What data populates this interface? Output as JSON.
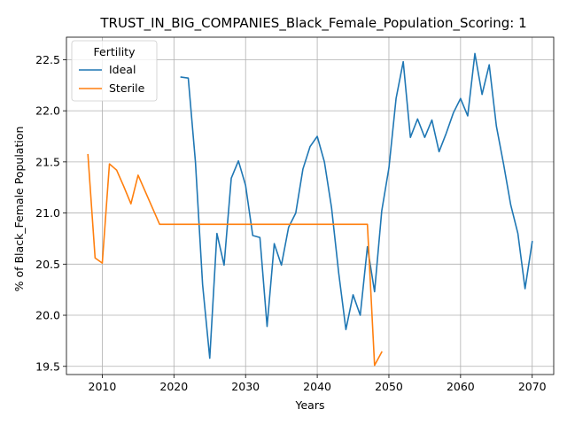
{
  "chart_data": {
    "type": "line",
    "title": "TRUST_IN_BIG_COMPANIES_Black_Female_Population_Scoring: 1",
    "xlabel": "Years",
    "ylabel": "% of Black_Female Population",
    "xlim": [
      2005,
      2073
    ],
    "ylim": [
      19.42,
      22.72
    ],
    "xticks": [
      2010,
      2020,
      2030,
      2040,
      2050,
      2060,
      2070
    ],
    "yticks": [
      19.5,
      20.0,
      20.5,
      21.0,
      21.5,
      22.0,
      22.5
    ],
    "xtick_labels": [
      "2010",
      "2020",
      "2030",
      "2040",
      "2050",
      "2060",
      "2070"
    ],
    "ytick_labels": [
      "19.5",
      "20.0",
      "20.5",
      "21.0",
      "21.5",
      "22.0",
      "22.5"
    ],
    "grid": true,
    "legend": {
      "title": "Fertility",
      "placement": "top-left"
    },
    "series": [
      {
        "name": "Ideal",
        "color": "#1f77b4",
        "x": [
          2021,
          2022,
          2023,
          2024,
          2025,
          2026,
          2027,
          2028,
          2029,
          2030,
          2031,
          2032,
          2033,
          2034,
          2035,
          2036,
          2037,
          2038,
          2039,
          2040,
          2041,
          2042,
          2043,
          2044,
          2045,
          2046,
          2047,
          2048,
          2049,
          2050,
          2051,
          2052,
          2053,
          2054,
          2055,
          2056,
          2057,
          2058,
          2059,
          2060,
          2061,
          2062,
          2063,
          2064,
          2065,
          2066,
          2067,
          2068,
          2069,
          2070
        ],
        "y": [
          22.33,
          22.32,
          21.5,
          20.3,
          19.58,
          20.8,
          20.49,
          21.34,
          21.51,
          21.27,
          20.78,
          20.76,
          19.89,
          20.7,
          20.49,
          20.86,
          21.0,
          21.43,
          21.65,
          21.75,
          21.5,
          21.05,
          20.41,
          19.86,
          20.2,
          20.0,
          20.67,
          20.23,
          21.02,
          21.44,
          22.12,
          22.48,
          21.74,
          21.92,
          21.74,
          21.91,
          21.6,
          21.78,
          21.98,
          22.12,
          21.95,
          22.56,
          22.16,
          22.45,
          21.85,
          21.48,
          21.08,
          20.8,
          20.26,
          20.72
        ]
      },
      {
        "name": "Sterile",
        "color": "#ff7f0e",
        "x": [
          2008,
          2009,
          2010,
          2011,
          2012,
          2013,
          2014,
          2015,
          2016,
          2017,
          2018,
          2019,
          2020,
          2021,
          2022,
          2023,
          2024,
          2025,
          2026,
          2027,
          2028,
          2029,
          2030,
          2031,
          2032,
          2033,
          2034,
          2035,
          2036,
          2037,
          2038,
          2039,
          2040,
          2041,
          2042,
          2043,
          2044,
          2045,
          2046,
          2047,
          2048,
          2049
        ],
        "y": [
          21.57,
          20.56,
          20.51,
          21.48,
          21.42,
          21.26,
          21.09,
          21.37,
          21.21,
          21.05,
          20.89,
          20.89,
          20.89,
          20.89,
          20.89,
          20.89,
          20.89,
          20.89,
          20.89,
          20.89,
          20.89,
          20.89,
          20.89,
          20.89,
          20.89,
          20.89,
          20.89,
          20.89,
          20.89,
          20.89,
          20.89,
          20.89,
          20.89,
          20.89,
          20.89,
          20.89,
          20.89,
          20.89,
          20.89,
          20.89,
          19.51,
          19.64
        ]
      }
    ]
  }
}
